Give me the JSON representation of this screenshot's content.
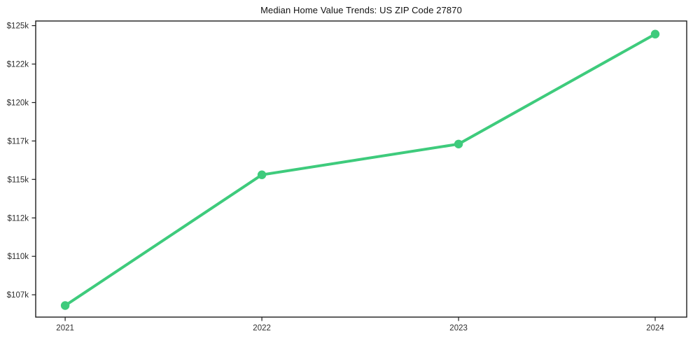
{
  "page": {
    "background": "#ffffff"
  },
  "chart_data": {
    "type": "line",
    "title": "Median Home Value Trends: US ZIP Code 27870",
    "xlabel": "",
    "ylabel": "",
    "x": [
      2021,
      2022,
      2023,
      2024
    ],
    "x_tick_labels": [
      "2021",
      "2022",
      "2023",
      "2024"
    ],
    "series": [
      {
        "name": "Median Home Value",
        "values": [
          106800,
          115300,
          117300,
          124450
        ],
        "color": "#3ecb7c",
        "marker": "circle",
        "marker_radius": 6.2,
        "line_width": 4
      }
    ],
    "yticks": [
      {
        "value": 107500,
        "label": "$107k"
      },
      {
        "value": 110000,
        "label": "$110k"
      },
      {
        "value": 112500,
        "label": "$112k"
      },
      {
        "value": 115000,
        "label": "$115k"
      },
      {
        "value": 117500,
        "label": "$117k"
      },
      {
        "value": 120000,
        "label": "$120k"
      },
      {
        "value": 122500,
        "label": "$122k"
      },
      {
        "value": 125000,
        "label": "$125k"
      }
    ],
    "xlim": [
      2020.85,
      2024.16
    ],
    "ylim": [
      106050,
      125300
    ],
    "grid": false,
    "legend": "none",
    "axis_color": "#1c1c1c",
    "tick_text_color": "#2e2e2e",
    "plot_background": "#ffffff"
  }
}
